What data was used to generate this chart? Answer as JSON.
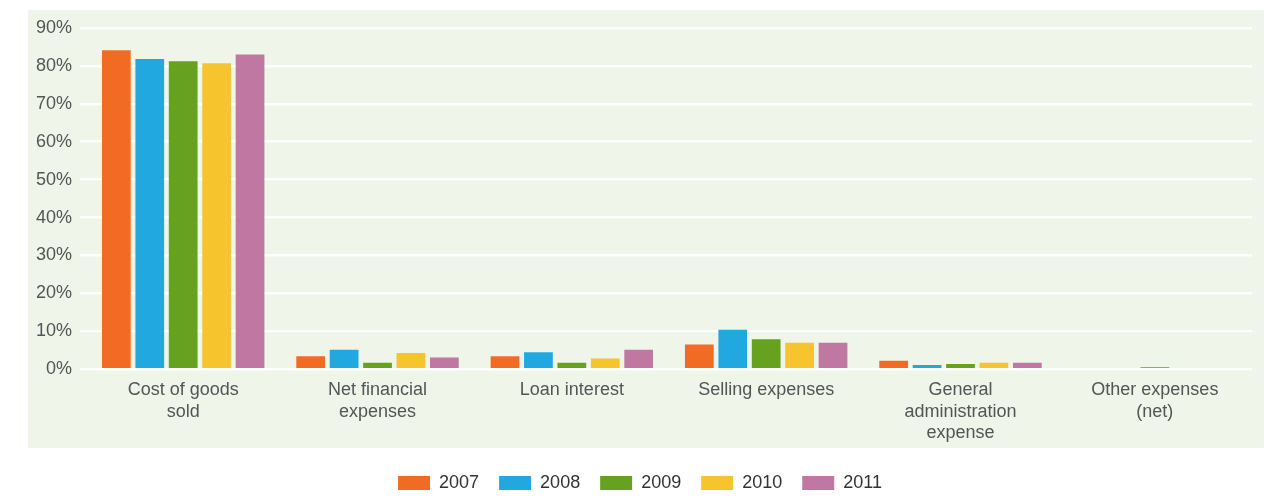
{
  "chart_data": {
    "type": "bar",
    "categories": [
      "Cost of goods sold",
      "Net financial expenses",
      "Loan interest",
      "Selling expenses",
      "General administration expense",
      "Other expenses (net)"
    ],
    "series": [
      {
        "name": "2007",
        "color": "#f26b25",
        "values": [
          84.1,
          3.4,
          3.4,
          6.5,
          2.2,
          0
        ]
      },
      {
        "name": "2008",
        "color": "#22a8e1",
        "values": [
          81.8,
          5.1,
          4.5,
          10.4,
          1.1,
          0
        ]
      },
      {
        "name": "2009",
        "color": "#66a11f",
        "values": [
          81.2,
          1.7,
          1.7,
          7.9,
          1.4,
          0.5
        ]
      },
      {
        "name": "2010",
        "color": "#f6c42c",
        "values": [
          80.7,
          4.3,
          2.8,
          7.0,
          1.7,
          0
        ]
      },
      {
        "name": "2011",
        "color": "#c077a1",
        "values": [
          83.0,
          3.1,
          5.1,
          7.0,
          1.7,
          0
        ]
      }
    ],
    "ylim": [
      0,
      90
    ],
    "yticks": [
      {
        "value": 0,
        "label": "0%"
      },
      {
        "value": 10,
        "label": "10%"
      },
      {
        "value": 20,
        "label": "20%"
      },
      {
        "value": 30,
        "label": "30%"
      },
      {
        "value": 40,
        "label": "40%"
      },
      {
        "value": 50,
        "label": "50%"
      },
      {
        "value": 60,
        "label": "60%"
      },
      {
        "value": 70,
        "label": "70%"
      },
      {
        "value": 80,
        "label": "80%"
      },
      {
        "value": 90,
        "label": "90%"
      }
    ],
    "grid": "y",
    "legend": "bottom"
  }
}
